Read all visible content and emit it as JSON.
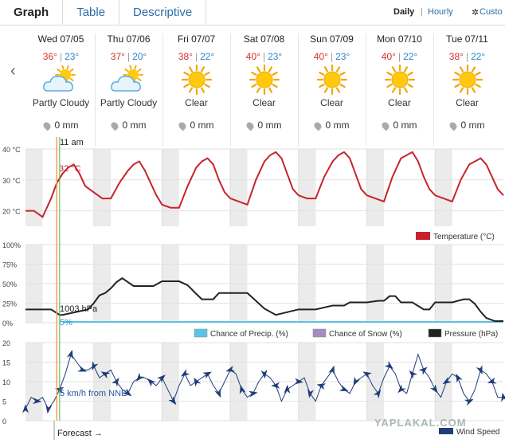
{
  "tabs": [
    {
      "label": "Graph"
    },
    {
      "label": "Table"
    },
    {
      "label": "Descriptive"
    }
  ],
  "view_modes": {
    "daily": "Daily",
    "separator": "|",
    "hourly": "Hourly",
    "custom": "Custo"
  },
  "days": [
    {
      "date": "Wed 07/05",
      "high": "36°",
      "low": "23°",
      "condition": "Partly Cloudy",
      "icon": "partly-cloudy-icon",
      "precip": "0 mm"
    },
    {
      "date": "Thu 07/06",
      "high": "37°",
      "low": "20°",
      "condition": "Partly Cloudy",
      "icon": "partly-cloudy-icon",
      "precip": "0 mm"
    },
    {
      "date": "Fri 07/07",
      "high": "38°",
      "low": "22°",
      "condition": "Clear",
      "icon": "sun-icon",
      "precip": "0 mm"
    },
    {
      "date": "Sat 07/08",
      "high": "40°",
      "low": "23°",
      "condition": "Clear",
      "icon": "sun-icon",
      "precip": "0 mm"
    },
    {
      "date": "Sun 07/09",
      "high": "40°",
      "low": "23°",
      "condition": "Clear",
      "icon": "sun-icon",
      "precip": "0 mm"
    },
    {
      "date": "Mon 07/10",
      "high": "40°",
      "low": "22°",
      "condition": "Clear",
      "icon": "sun-icon",
      "precip": "0 mm"
    },
    {
      "date": "Tue 07/11",
      "high": "38°",
      "low": "22°",
      "condition": "Clear",
      "icon": "sun-icon",
      "precip": "0 mm"
    }
  ],
  "now_label": "11 am",
  "forecast_label": "Forecast →",
  "watermark": "YAPLAKAL.COM",
  "colors": {
    "temperature": "#c8232c",
    "precip": "#5bc4e6",
    "snow": "#a48bc0",
    "pressure": "#222222",
    "wind": "#1f3d7a",
    "now_line": "#f0a050",
    "forecast_line": "#4caf50"
  },
  "chart_data": [
    {
      "type": "line",
      "name": "temperature",
      "ylim": [
        15,
        40
      ],
      "yticks": [
        "40 °C",
        "30 °C",
        "20 °C"
      ],
      "ytick_values": [
        40,
        30,
        20
      ],
      "hours_span": [
        0,
        168
      ],
      "x": [
        0,
        3,
        6,
        9,
        11,
        13,
        15,
        17,
        19,
        21,
        24,
        27,
        30,
        33,
        36,
        38,
        40,
        42,
        44,
        46,
        48,
        51,
        54,
        57,
        60,
        62,
        64,
        66,
        68,
        70,
        72,
        75,
        78,
        81,
        84,
        86,
        88,
        90,
        92,
        94,
        96,
        99,
        102,
        105,
        108,
        110,
        112,
        114,
        116,
        118,
        120,
        123,
        126,
        129,
        132,
        134,
        136,
        138,
        140,
        142,
        144,
        147,
        150,
        153,
        156,
        158,
        160,
        162,
        164,
        166,
        168
      ],
      "values": [
        20,
        20,
        18,
        24,
        29,
        32,
        34,
        35,
        32,
        28,
        26,
        24,
        24,
        29,
        33,
        35,
        36,
        33,
        29,
        25,
        22,
        21,
        21,
        28,
        34,
        36,
        37,
        35,
        30,
        26,
        24,
        23,
        22,
        30,
        36,
        38,
        39,
        37,
        32,
        27,
        25,
        24,
        24,
        31,
        36,
        38,
        39,
        37,
        32,
        27,
        25,
        24,
        23,
        31,
        37,
        38,
        39,
        36,
        31,
        27,
        25,
        24,
        23,
        30,
        35,
        36,
        37,
        35,
        31,
        27,
        25
      ],
      "annotation": "32 °C",
      "legend": "Temperature (°C)"
    },
    {
      "type": "line",
      "name": "precipitation-pressure",
      "ylim": [
        0,
        100
      ],
      "yticks": [
        "100%",
        "75%",
        "50%",
        "25%",
        "0%"
      ],
      "ytick_values": [
        100,
        75,
        50,
        25,
        0
      ],
      "series": [
        {
          "name": "Pressure (hPa)",
          "x": [
            0,
            8,
            9,
            12,
            13,
            22,
            24,
            26,
            28,
            30,
            32,
            34,
            36,
            38,
            42,
            45,
            48,
            54,
            57,
            60,
            62,
            64,
            66,
            68,
            72,
            78,
            81,
            84,
            88,
            96,
            99,
            102,
            108,
            112,
            114,
            120,
            124,
            126,
            128,
            130,
            132,
            136,
            140,
            142,
            144,
            150,
            154,
            156,
            158,
            160,
            162,
            165,
            168
          ],
          "values": [
            17,
            17,
            17,
            10,
            10,
            17,
            25,
            35,
            38,
            44,
            52,
            57,
            52,
            47,
            47,
            47,
            53,
            53,
            48,
            37,
            30,
            30,
            30,
            38,
            38,
            38,
            28,
            18,
            10,
            17,
            17,
            17,
            22,
            22,
            26,
            26,
            28,
            28,
            34,
            34,
            26,
            26,
            17,
            17,
            26,
            26,
            30,
            30,
            24,
            14,
            6,
            2,
            2
          ]
        },
        {
          "name": "Chance of Precip. (%)",
          "values_all": 1
        },
        {
          "name": "Chance of Snow (%)",
          "values_all": 0
        }
      ],
      "annotations": [
        "1003 hPa",
        "5%"
      ],
      "legend": [
        "Chance of Precip. (%)",
        "Chance of Snow (%)",
        "Pressure (hPa)"
      ]
    },
    {
      "type": "line",
      "name": "wind",
      "ylim": [
        0,
        20
      ],
      "yticks": [
        "20",
        "15",
        "10",
        "5",
        "0"
      ],
      "ytick_values": [
        20,
        15,
        10,
        5,
        0
      ],
      "x": [
        0,
        2,
        4,
        6,
        8,
        10,
        12,
        14,
        16,
        18,
        20,
        22,
        24,
        26,
        28,
        30,
        32,
        34,
        36,
        38,
        40,
        42,
        44,
        46,
        48,
        50,
        52,
        54,
        56,
        58,
        60,
        62,
        64,
        66,
        68,
        70,
        72,
        74,
        76,
        78,
        80,
        82,
        84,
        86,
        88,
        90,
        92,
        94,
        96,
        98,
        100,
        102,
        104,
        106,
        108,
        110,
        112,
        114,
        116,
        118,
        120,
        122,
        124,
        126,
        128,
        130,
        132,
        134,
        136,
        138,
        140,
        142,
        144,
        146,
        148,
        150,
        152,
        154,
        156,
        158,
        160,
        162,
        164,
        166,
        168
      ],
      "values": [
        3,
        6,
        5,
        6,
        3,
        5,
        8,
        12,
        17,
        15,
        13,
        13,
        14,
        11,
        12,
        13,
        10,
        8,
        7,
        10,
        11,
        11,
        10,
        9,
        11,
        8,
        5,
        9,
        12,
        9,
        10,
        11,
        12,
        9,
        7,
        10,
        13,
        12,
        8,
        6,
        7,
        10,
        12,
        11,
        9,
        5,
        8,
        9,
        10,
        11,
        7,
        5,
        9,
        11,
        13,
        10,
        8,
        7,
        10,
        11,
        12,
        9,
        7,
        11,
        14,
        12,
        8,
        7,
        12,
        17,
        13,
        11,
        8,
        6,
        10,
        12,
        11,
        7,
        5,
        8,
        13,
        12,
        10,
        6,
        6
      ],
      "annotation": "5 km/h from NNE",
      "legend": "Wind Speed"
    }
  ]
}
